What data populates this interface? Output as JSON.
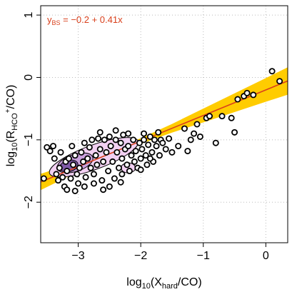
{
  "chart_data": {
    "type": "scatter",
    "xlabel": {
      "base": "log",
      "sub": "10",
      "open": "(X",
      "sub2": "hard",
      "close": "/CO)"
    },
    "ylabel": {
      "base": "log",
      "sub": "10",
      "open": "(R",
      "sub2": "HCO",
      "sup": "+",
      "close": "/CO)"
    },
    "xlim": [
      -3.6,
      0.35
    ],
    "ylim": [
      -2.65,
      1.15
    ],
    "xticks": [
      -3,
      -2,
      -1,
      0
    ],
    "xtick_labels": [
      "−3",
      "−2",
      "−1",
      "0"
    ],
    "yticks": [
      -2,
      -1,
      0,
      1
    ],
    "ytick_labels": [
      "−2",
      "−1",
      "0",
      "1"
    ],
    "grid": true,
    "fit": {
      "intercept": -0.2,
      "slope": 0.41,
      "label_lhs": "y",
      "label_sub": "BS",
      "label_rhs": " = −0.2 + 0.41x",
      "color": "#d9401c",
      "band_color": "#ffcc00"
    },
    "band": {
      "x": [
        -3.6,
        -3.0,
        -2.5,
        -2.0,
        -1.5,
        -1.0,
        -0.5,
        0.0,
        0.35
      ],
      "half_width": [
        0.13,
        0.08,
        0.05,
        0.045,
        0.07,
        0.11,
        0.15,
        0.19,
        0.22
      ]
    },
    "density_colors": [
      "#f2d0f2",
      "#c9a0dc",
      "#7f5aa8"
    ],
    "point_stroke": "#000000",
    "points": [
      [
        -3.5,
        -1.12
      ],
      [
        -3.45,
        -1.18
      ],
      [
        -3.4,
        -1.1
      ],
      [
        -3.38,
        -1.3
      ],
      [
        -3.35,
        -1.55
      ],
      [
        -3.32,
        -1.65
      ],
      [
        -3.3,
        -1.45
      ],
      [
        -3.28,
        -1.2
      ],
      [
        -3.25,
        -1.6
      ],
      [
        -3.22,
        -1.75
      ],
      [
        -3.2,
        -1.35
      ],
      [
        -3.18,
        -1.5
      ],
      [
        -3.15,
        -1.3
      ],
      [
        -3.12,
        -1.62
      ],
      [
        -3.1,
        -1.1
      ],
      [
        -3.08,
        -1.4
      ],
      [
        -3.05,
        -1.25
      ],
      [
        -3.02,
        -1.55
      ],
      [
        -3.0,
        -1.7
      ],
      [
        -2.98,
        -1.45
      ],
      [
        -2.95,
        -1.2
      ],
      [
        -2.92,
        -1.35
      ],
      [
        -2.9,
        -1.05
      ],
      [
        -2.88,
        -1.6
      ],
      [
        -2.85,
        -1.3
      ],
      [
        -2.82,
        -1.12
      ],
      [
        -2.8,
        -1.45
      ],
      [
        -2.78,
        -1.0
      ],
      [
        -2.75,
        -1.55
      ],
      [
        -2.72,
        -1.25
      ],
      [
        -2.7,
        -1.4
      ],
      [
        -2.68,
        -0.98
      ],
      [
        -2.65,
        -1.15
      ],
      [
        -2.62,
        -1.65
      ],
      [
        -2.6,
        -1.35
      ],
      [
        -2.58,
        -1.0
      ],
      [
        -2.55,
        -1.2
      ],
      [
        -2.52,
        -1.5
      ],
      [
        -2.5,
        -0.95
      ],
      [
        -2.48,
        -1.1
      ],
      [
        -2.45,
        -1.35
      ],
      [
        -2.42,
        -1.62
      ],
      [
        -2.4,
        -1.0
      ],
      [
        -2.38,
        -1.2
      ],
      [
        -2.35,
        -1.45
      ],
      [
        -2.32,
        -1.05
      ],
      [
        -2.3,
        -1.3
      ],
      [
        -2.28,
        -0.92
      ],
      [
        -2.25,
        -1.15
      ],
      [
        -2.22,
        -1.4
      ],
      [
        -2.2,
        -1.1
      ],
      [
        -2.18,
        -1.5
      ],
      [
        -2.15,
        -1.25
      ],
      [
        -2.12,
        -1.0
      ],
      [
        -2.1,
        -1.35
      ],
      [
        -2.08,
        -1.18
      ],
      [
        -2.05,
        -1.45
      ],
      [
        -2.02,
        -1.05
      ],
      [
        -2.0,
        -1.3
      ],
      [
        -1.98,
        -1.15
      ],
      [
        -1.95,
        -1.0
      ],
      [
        -1.92,
        -1.25
      ],
      [
        -1.9,
        -1.4
      ],
      [
        -1.88,
        -1.08
      ],
      [
        -1.85,
        -0.95
      ],
      [
        -1.82,
        -1.2
      ],
      [
        -1.8,
        -1.35
      ],
      [
        -1.78,
        -1.0
      ],
      [
        -1.75,
        -1.1
      ],
      [
        -1.72,
        -0.88
      ],
      [
        -1.7,
        -1.25
      ],
      [
        -1.68,
        -1.0
      ],
      [
        -1.65,
        -1.05
      ],
      [
        -1.6,
        -1.15
      ],
      [
        -1.55,
        -0.98
      ],
      [
        -1.5,
        -1.2
      ],
      [
        -1.4,
        -1.1
      ],
      [
        -1.3,
        -0.82
      ],
      [
        -1.25,
        -1.18
      ],
      [
        -1.2,
        -1.0
      ],
      [
        -1.15,
        -0.9
      ],
      [
        -1.1,
        -0.75
      ],
      [
        -1.05,
        -0.95
      ],
      [
        -0.95,
        -0.65
      ],
      [
        -0.9,
        -0.62
      ],
      [
        -0.8,
        -1.05
      ],
      [
        -0.7,
        -0.62
      ],
      [
        -0.55,
        -0.65
      ],
      [
        -0.5,
        -0.88
      ],
      [
        -0.45,
        -0.35
      ],
      [
        -0.35,
        -0.3
      ],
      [
        -0.3,
        -0.25
      ],
      [
        -0.2,
        -0.28
      ],
      [
        0.1,
        0.1
      ],
      [
        0.22,
        -0.06
      ],
      [
        -3.55,
        -1.62
      ],
      [
        -3.05,
        -1.82
      ],
      [
        -2.5,
        -1.75
      ],
      [
        -2.32,
        -1.68
      ],
      [
        -2.0,
        -1.48
      ],
      [
        -1.95,
        -0.9
      ],
      [
        -2.65,
        -0.88
      ],
      [
        -2.4,
        -0.85
      ],
      [
        -2.2,
        -0.9
      ],
      [
        -2.9,
        -1.75
      ],
      [
        -3.18,
        -1.8
      ],
      [
        -2.75,
        -1.7
      ],
      [
        -2.3,
        -1.55
      ],
      [
        -2.6,
        -1.8
      ],
      [
        -1.85,
        -1.3
      ]
    ]
  }
}
